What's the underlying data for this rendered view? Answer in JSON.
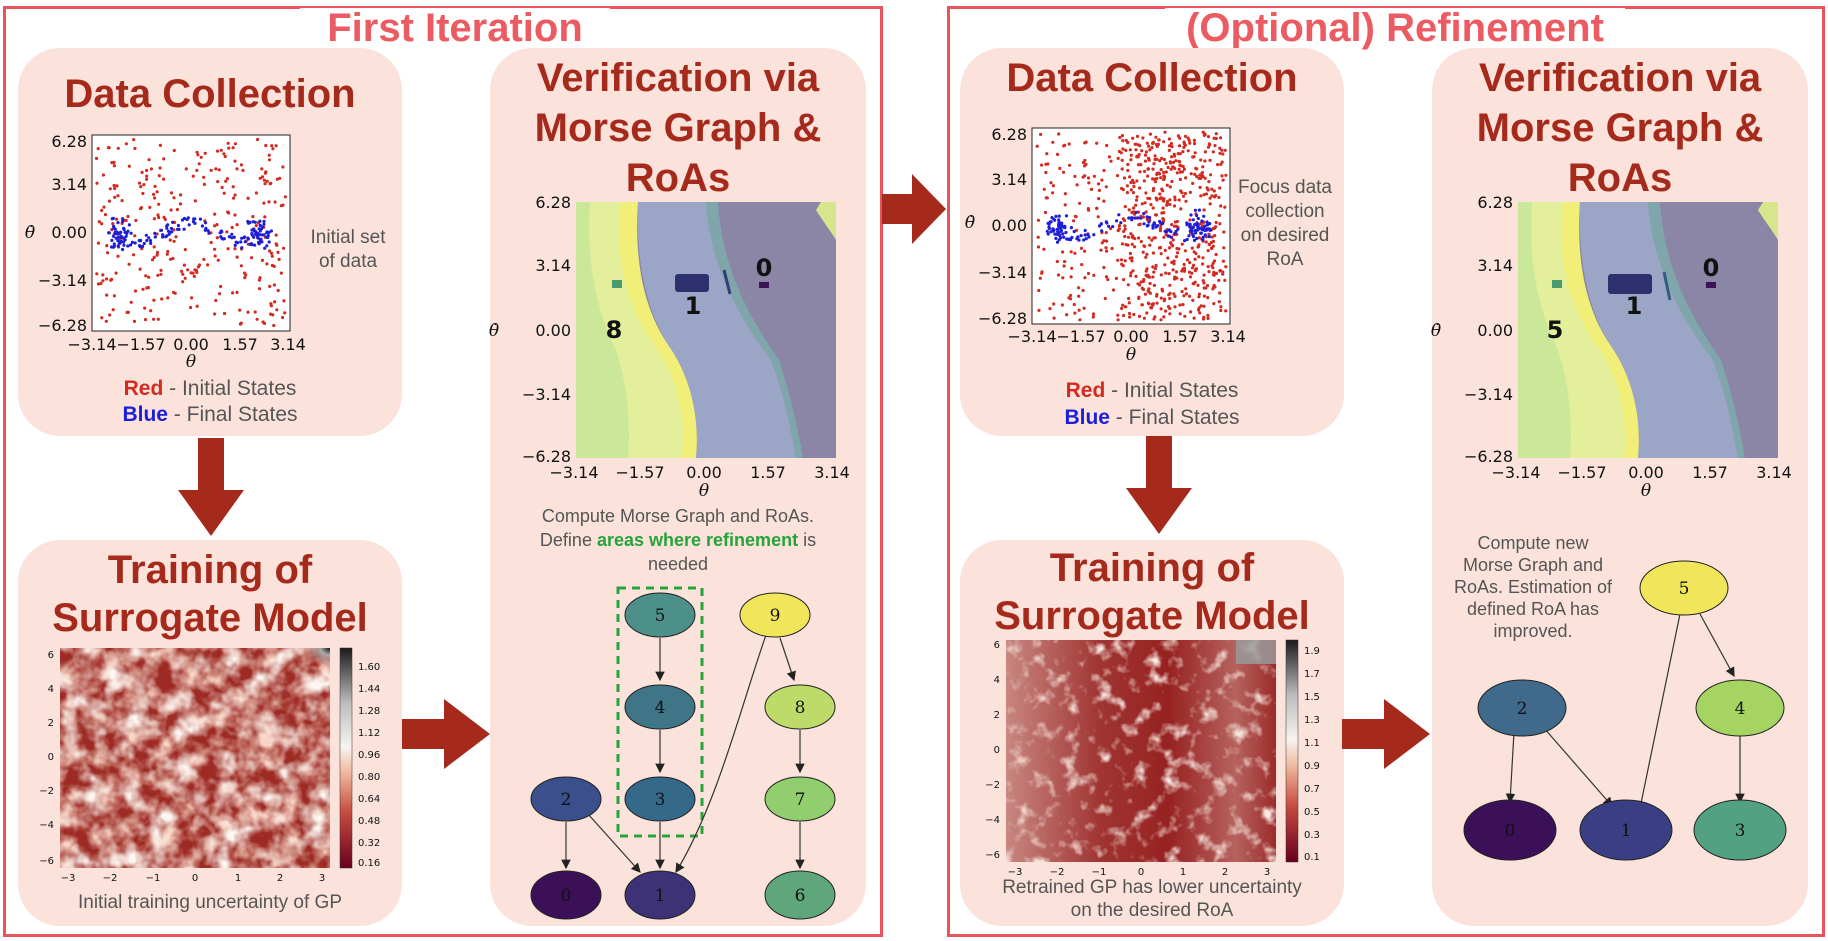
{
  "left_frame": {
    "title": "First Iteration"
  },
  "right_frame": {
    "title": "(Optional) Refinement"
  },
  "dc1": {
    "title": "Data Collection",
    "note": "Initial set of data",
    "legend_red": "Red",
    "legend_red_text": " - Initial States",
    "legend_blue": "Blue",
    "legend_blue_text": " - Final States",
    "yticks": [
      "6.28",
      "3.14",
      "0.00",
      "−3.14",
      "−6.28"
    ],
    "xticks": [
      "−3.14",
      "−1.57",
      "0.00",
      "1.57",
      "3.14"
    ],
    "xlabel": "θ",
    "ylabel": "θ̇"
  },
  "tr1": {
    "title_line1": "Training of",
    "title_line2": "Surrogate Model",
    "caption": "Initial training uncertainty of GP",
    "colorbar_ticks": [
      "1.60",
      "1.44",
      "1.28",
      "1.12",
      "0.96",
      "0.80",
      "0.64",
      "0.48",
      "0.32",
      "0.16"
    ],
    "yticks": [
      "6",
      "4",
      "2",
      "0",
      "−2",
      "−4",
      "−6"
    ],
    "xticks": [
      "−3",
      "−2",
      "−1",
      "0",
      "1",
      "2",
      "3"
    ]
  },
  "ver1": {
    "title_line1": "Verification via",
    "title_line2": "Morse Graph &",
    "title_line3": "RoAs",
    "yticks": [
      "6.28",
      "3.14",
      "0.00",
      "−3.14",
      "−6.28"
    ],
    "xticks": [
      "−3.14",
      "−1.57",
      "0.00",
      "1.57",
      "3.14"
    ],
    "xlabel": "θ",
    "ylabel": "θ̇",
    "region_labels": [
      "0",
      "1",
      "8"
    ],
    "caption_line1": "Compute Morse Graph and RoAs.",
    "caption_pre": "Define ",
    "caption_highlight": "areas where refinement",
    "caption_post": " is",
    "caption_line3": "needed",
    "nodes": [
      "5",
      "4",
      "3",
      "2",
      "0",
      "1",
      "9",
      "8",
      "7",
      "6"
    ]
  },
  "dc2": {
    "title": "Data Collection",
    "note_line1": "Focus data",
    "note_line2": "collection",
    "note_line3": "on desired",
    "note_line4": "RoA",
    "legend_red": "Red",
    "legend_red_text": " - Initial States",
    "legend_blue": "Blue",
    "legend_blue_text": " - Final States",
    "yticks": [
      "6.28",
      "3.14",
      "0.00",
      "−3.14",
      "−6.28"
    ],
    "xticks": [
      "−3.14",
      "−1.57",
      "0.00",
      "1.57",
      "3.14"
    ],
    "xlabel": "θ",
    "ylabel": "θ̇"
  },
  "tr2": {
    "title_line1": "Training of",
    "title_line2": "Surrogate Model",
    "caption_line1": "Retrained GP has lower uncertainty",
    "caption_line2": "on the desired RoA",
    "colorbar_ticks": [
      "1.9",
      "1.7",
      "1.5",
      "1.3",
      "1.1",
      "0.9",
      "0.7",
      "0.5",
      "0.3",
      "0.1"
    ],
    "yticks": [
      "6",
      "4",
      "2",
      "0",
      "−2",
      "−4",
      "−6"
    ],
    "xticks": [
      "−3",
      "−2",
      "−1",
      "0",
      "1",
      "2",
      "3"
    ]
  },
  "ver2": {
    "title_line1": "Verification via",
    "title_line2": "Morse Graph &",
    "title_line3": "RoAs",
    "yticks": [
      "6.28",
      "3.14",
      "0.00",
      "−3.14",
      "−6.28"
    ],
    "xticks": [
      "−3.14",
      "−1.57",
      "0.00",
      "1.57",
      "3.14"
    ],
    "xlabel": "θ",
    "ylabel": "θ̇",
    "region_labels": [
      "0",
      "1",
      "5"
    ],
    "caption_line1": "Compute new",
    "caption_line2": "Morse Graph and",
    "caption_line3": "RoAs. Estimation of",
    "caption_line4": "defined RoA has",
    "caption_line5": "improved.",
    "nodes": [
      "5",
      "2",
      "4",
      "0",
      "1",
      "3"
    ]
  },
  "colors": {
    "frame": "#e8535c",
    "card": "#fbe3dc",
    "title": "#a52a1c",
    "arrow": "#a52a1c",
    "initial_states": "#d42b21",
    "final_states": "#1c1ed8",
    "refine_box": "#27a33b"
  }
}
